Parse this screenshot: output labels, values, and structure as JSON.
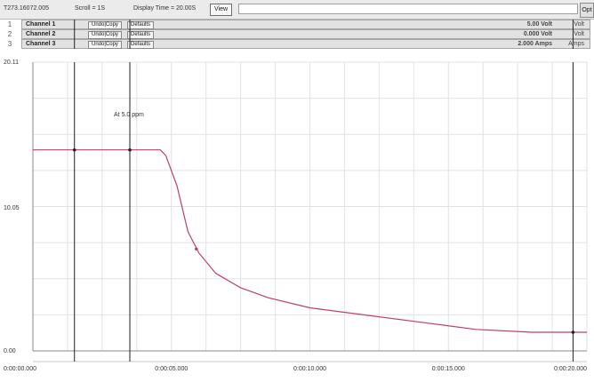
{
  "toolbar": {
    "file_info": "T273.16072.005",
    "scroll_info": "Scroll = 1S",
    "display_time": "Display Time = 20.00S",
    "view_button": "View",
    "search_placeholder": "",
    "corner_button": "Opt"
  },
  "channels": [
    {
      "name": "Channel 1",
      "btn1": "Undo|Copy",
      "btn2": "Defaults",
      "value_label": "5.00 Volt",
      "unit": "Volt",
      "marker": "1"
    },
    {
      "name": "Channel 2",
      "btn1": "Undo|Copy",
      "btn2": "Defaults",
      "value_label": "0.000 Volt",
      "unit": "Volt",
      "marker": "2"
    },
    {
      "name": "Channel 3",
      "btn1": "Undo|Copy",
      "btn2": "Defaults",
      "value_label": "2.000 Amps",
      "unit": "Amps",
      "marker": "3"
    }
  ],
  "annotation": {
    "text": "At 5.0 ppm"
  },
  "y_axis": {
    "top": "20.11",
    "mid": "10.05",
    "bottom": "0.00"
  },
  "x_axis": {
    "ticks": [
      "0:00:00.000",
      "0:00:05.000",
      "0:00:10.000",
      "0:00:15.000",
      "0:00:20.000"
    ]
  },
  "colors": {
    "trace": "#c04060",
    "grid": "#e2e2e2",
    "cursor": "#202020"
  },
  "chart_data": {
    "type": "line",
    "title": "",
    "xlabel": "",
    "ylabel": "",
    "xlim": [
      0,
      20
    ],
    "ylim": [
      0,
      20.11
    ],
    "series": [
      {
        "x": [
          0,
          1.5,
          3.5,
          4.6,
          4.8,
          5.2,
          5.6,
          6.0,
          6.6,
          7.5,
          8.5,
          10,
          12,
          14,
          16,
          18,
          20
        ],
        "y": [
          14.0,
          14.0,
          14.0,
          14.0,
          13.6,
          11.5,
          8.3,
          6.8,
          5.4,
          4.4,
          3.7,
          3.0,
          2.5,
          2.0,
          1.5,
          1.3,
          1.3
        ]
      }
    ],
    "cursors_x": [
      1.5,
      3.5,
      19.5
    ],
    "marker_point": {
      "x": 5.9,
      "y": 7.1
    },
    "grid": true
  }
}
